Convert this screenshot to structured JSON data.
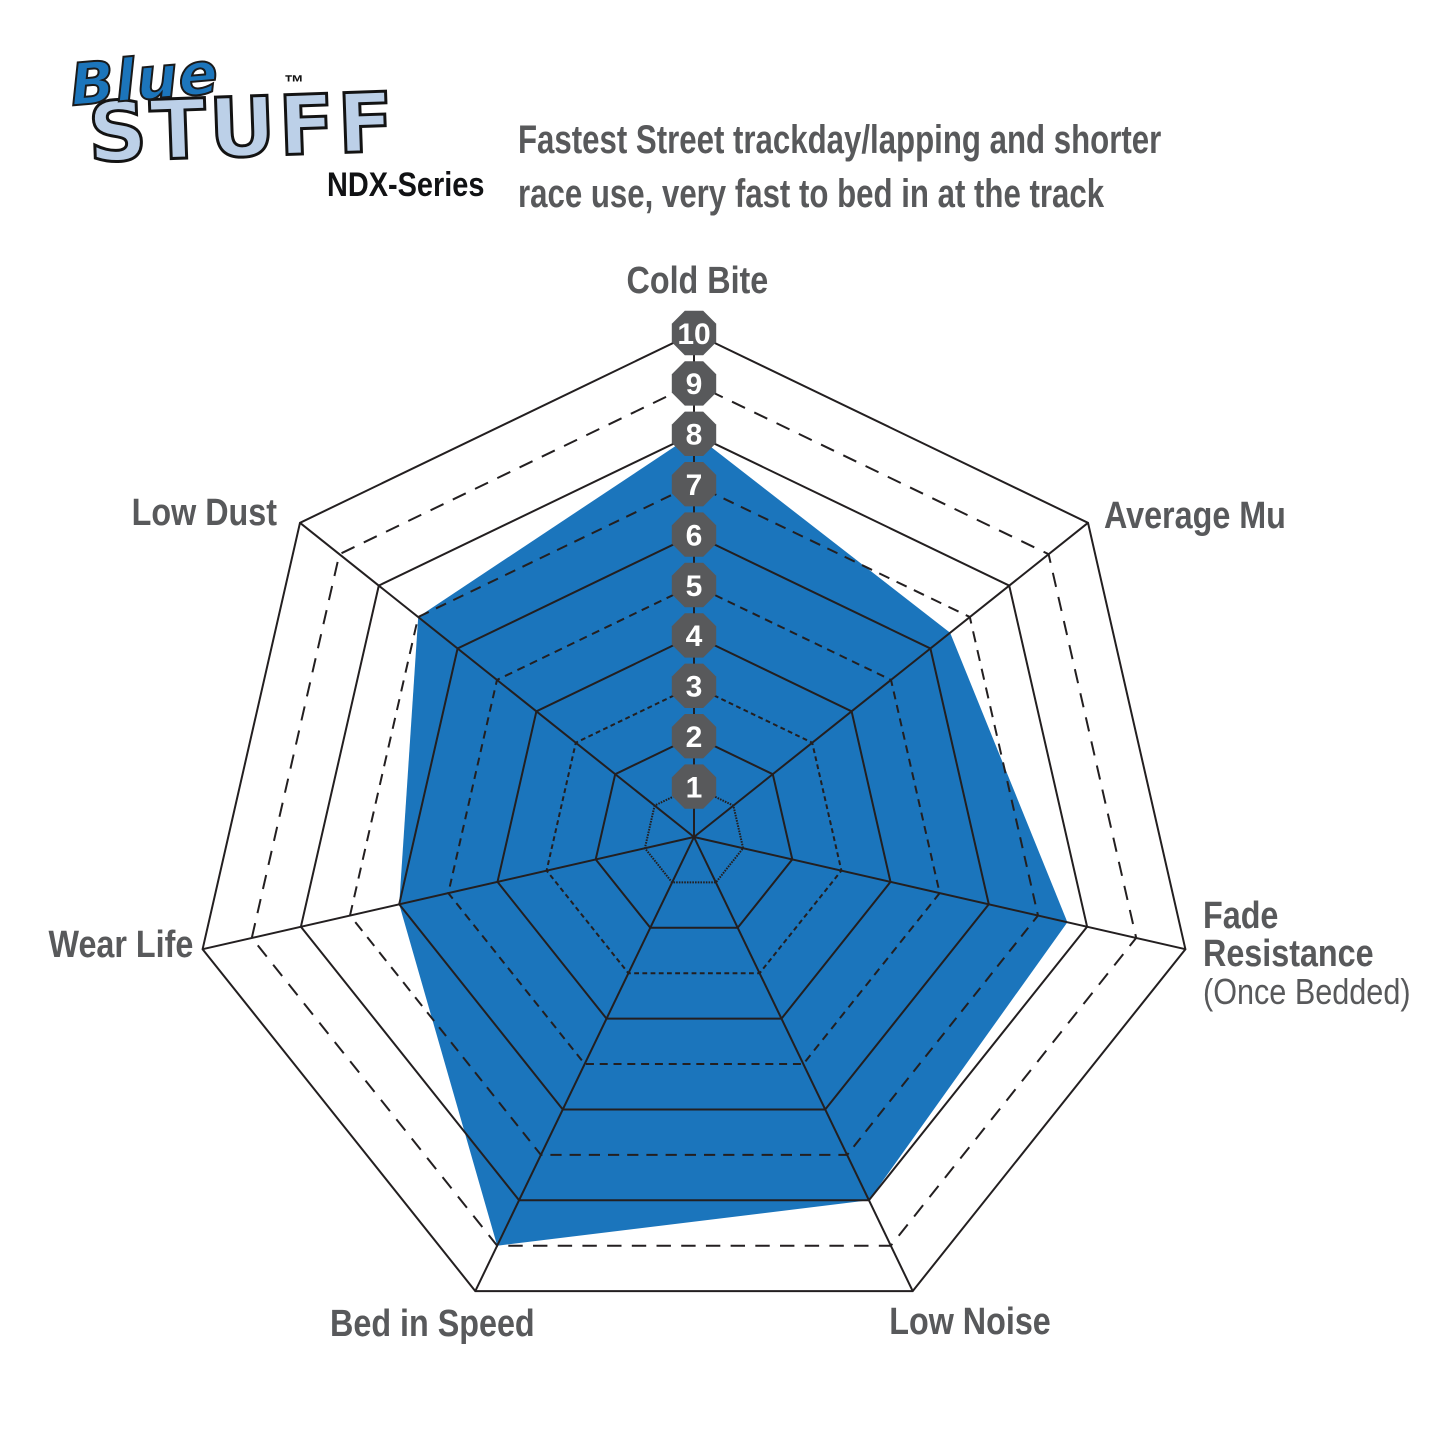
{
  "page": {
    "background": "#ffffff"
  },
  "header": {
    "logo": {
      "line1": "Blue",
      "line2": "STUFF",
      "trademark": "™"
    },
    "series": "NDX-Series",
    "subtitle_line1": "Fastest Street trackday/lapping and shorter",
    "subtitle_line2": "race use, very fast to bed in at the track"
  },
  "axis_labels": {
    "cold_bite": "Cold Bite",
    "average_mu": "Average Mu",
    "fade_line1": "Fade",
    "fade_line2": "Resistance",
    "fade_line3": "(Once Bedded)",
    "low_noise": "Low Noise",
    "bed_in_speed": "Bed in Speed",
    "wear_life": "Wear Life",
    "low_dust": "Low Dust"
  },
  "chart_data": {
    "type": "radar",
    "categories": [
      "Cold Bite",
      "Average Mu",
      "Fade Resistance (Once Bedded)",
      "Low Noise",
      "Bed in Speed",
      "Wear Life",
      "Low Dust"
    ],
    "series": [
      {
        "name": "BlueStuff NDX-Series",
        "values": [
          8,
          6.5,
          7.6,
          8,
          9,
          6,
          7
        ]
      }
    ],
    "scale": {
      "min": 0,
      "max": 10,
      "ticks": [
        1,
        2,
        3,
        4,
        5,
        6,
        7,
        8,
        9,
        10
      ]
    },
    "grid": {
      "shape": "heptagon",
      "even_rings": "solid",
      "odd_rings": "dashed",
      "spokes": "solid"
    },
    "legend_position": "none",
    "fill_color": "#1B75BC",
    "line_color": "#231F20",
    "tick_badge_color": "#58595B",
    "tick_text_color": "#FFFFFF"
  },
  "colors": {
    "label_gray": "#58595B",
    "logo_blue": "#1C75BB",
    "logo_light_blue": "#BCD0E8",
    "black": "#111214"
  }
}
